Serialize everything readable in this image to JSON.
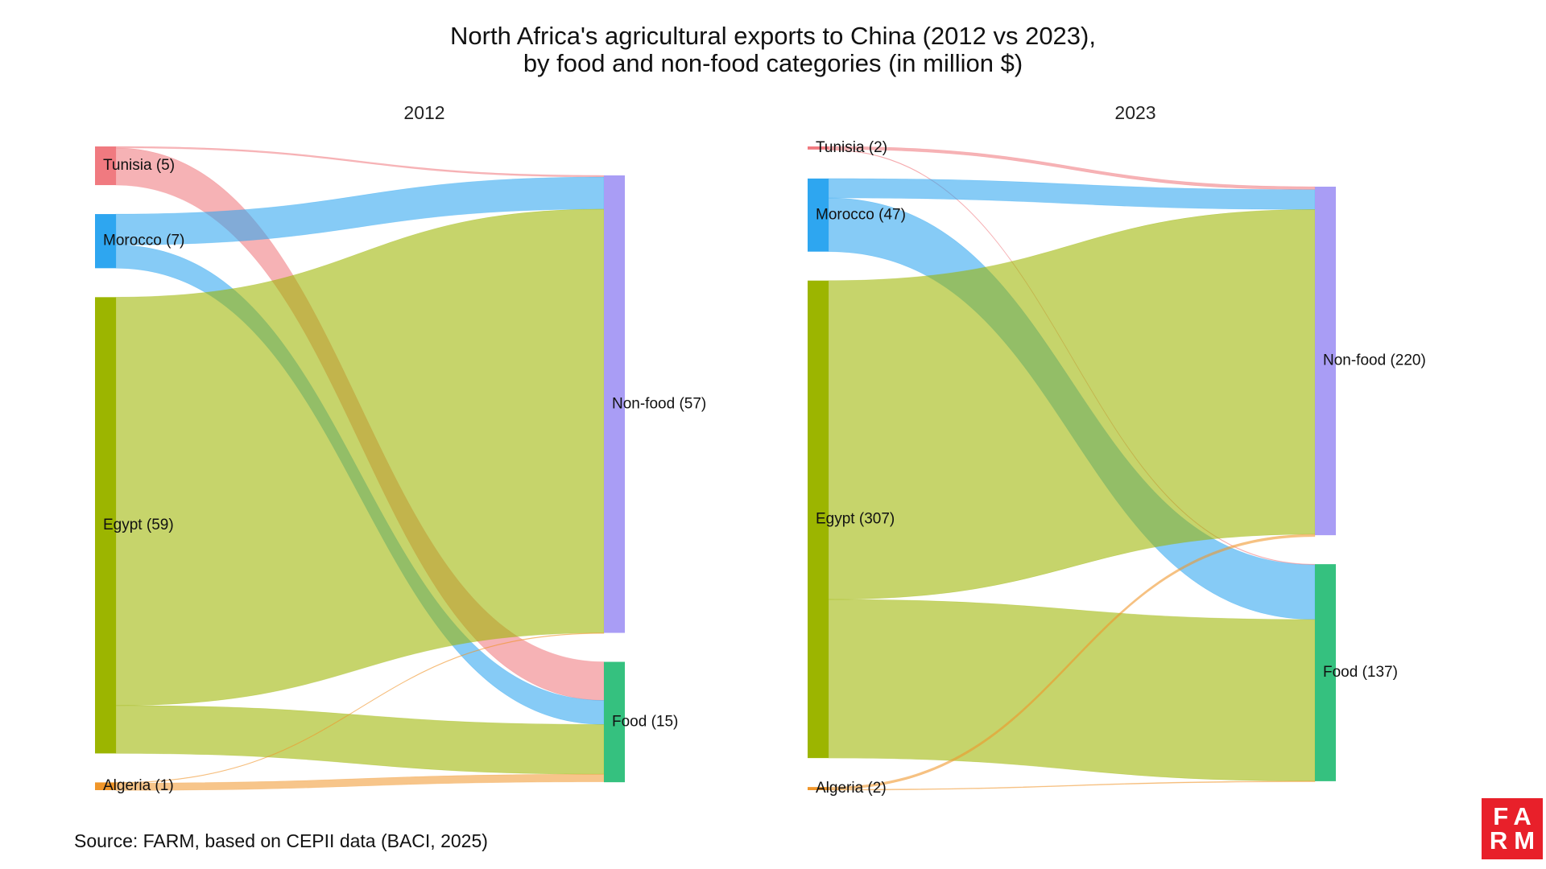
{
  "title": {
    "line1": "North Africa's agricultural exports to China (2012 vs 2023),",
    "line2": "by food and non-food categories (in million $)"
  },
  "source": "Source: FARM, based on CEPII data (BACI, 2025)",
  "logo": {
    "line1": "FA",
    "line2": "RM"
  },
  "colors": {
    "Tunisia": "#f07a80",
    "Morocco": "#2ea6f0",
    "Egypt": "#9cb500",
    "Algeria": "#f0962a",
    "Non-food": "#a99df5",
    "Food": "#35c17f"
  },
  "chart_data": [
    {
      "type": "sankey",
      "panel_title": "2012",
      "sources": [
        {
          "name": "Tunisia",
          "label": "Tunisia (5)",
          "value": 5
        },
        {
          "name": "Morocco",
          "label": "Morocco (7)",
          "value": 7
        },
        {
          "name": "Egypt",
          "label": "Egypt (59)",
          "value": 59
        },
        {
          "name": "Algeria",
          "label": "Algeria (1)",
          "value": 1
        }
      ],
      "targets": [
        {
          "name": "Non-food",
          "label": "Non-food (57)",
          "value": 57
        },
        {
          "name": "Food",
          "label": "Food (15)",
          "value": 15
        }
      ],
      "links": [
        {
          "source": "Tunisia",
          "target": "Non-food",
          "value": 0.2
        },
        {
          "source": "Tunisia",
          "target": "Food",
          "value": 4.8
        },
        {
          "source": "Morocco",
          "target": "Non-food",
          "value": 4.0
        },
        {
          "source": "Morocco",
          "target": "Food",
          "value": 3.0
        },
        {
          "source": "Egypt",
          "target": "Non-food",
          "value": 52.8
        },
        {
          "source": "Egypt",
          "target": "Food",
          "value": 6.2
        },
        {
          "source": "Algeria",
          "target": "Non-food",
          "value": 0.05
        },
        {
          "source": "Algeria",
          "target": "Food",
          "value": 0.95
        }
      ]
    },
    {
      "type": "sankey",
      "panel_title": "2023",
      "sources": [
        {
          "name": "Tunisia",
          "label": "Tunisia (2)",
          "value": 2
        },
        {
          "name": "Morocco",
          "label": "Morocco (47)",
          "value": 47
        },
        {
          "name": "Egypt",
          "label": "Egypt (307)",
          "value": 307
        },
        {
          "name": "Algeria",
          "label": "Algeria (2)",
          "value": 2
        }
      ],
      "targets": [
        {
          "name": "Non-food",
          "label": "Non-food (220)",
          "value": 220
        },
        {
          "name": "Food",
          "label": "Food (137)",
          "value": 137
        }
      ],
      "links": [
        {
          "source": "Tunisia",
          "target": "Non-food",
          "value": 1.9
        },
        {
          "source": "Tunisia",
          "target": "Food",
          "value": 0.1
        },
        {
          "source": "Morocco",
          "target": "Non-food",
          "value": 12.5
        },
        {
          "source": "Morocco",
          "target": "Food",
          "value": 34.5
        },
        {
          "source": "Egypt",
          "target": "Non-food",
          "value": 205
        },
        {
          "source": "Egypt",
          "target": "Food",
          "value": 102
        },
        {
          "source": "Algeria",
          "target": "Non-food",
          "value": 1.5
        },
        {
          "source": "Algeria",
          "target": "Food",
          "value": 0.5
        }
      ]
    }
  ]
}
